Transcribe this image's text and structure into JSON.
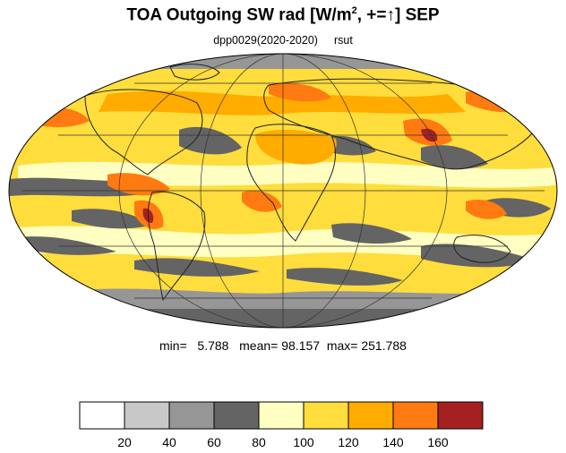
{
  "title": {
    "prefix": "TOA Outgoing SW rad [W/m",
    "sup": "2",
    "suffix": ", +=↑] SEP"
  },
  "subtitle": {
    "left": "dpp0029(2020-2020)",
    "right": "rsut"
  },
  "stats": {
    "min_label": "min=",
    "min": "5.788",
    "mean_label": "mean=",
    "mean": "98.157",
    "max_label": "max=",
    "max": "251.788"
  },
  "projection": "Mollweide",
  "graticule": true,
  "colorbar": {
    "levels": [
      20,
      40,
      60,
      80,
      100,
      120,
      140,
      160
    ],
    "tick_labels": [
      "20",
      "40",
      "60",
      "80",
      "100",
      "120",
      "140",
      "160"
    ],
    "colors": [
      "#ffffff",
      "#c8c8c8",
      "#969696",
      "#646464",
      "#ffffc2",
      "#ffdd3d",
      "#ffab00",
      "#ff7a10",
      "#a52020"
    ]
  },
  "colors": {
    "continent_outline": "#222222",
    "gridline": "#333333"
  }
}
